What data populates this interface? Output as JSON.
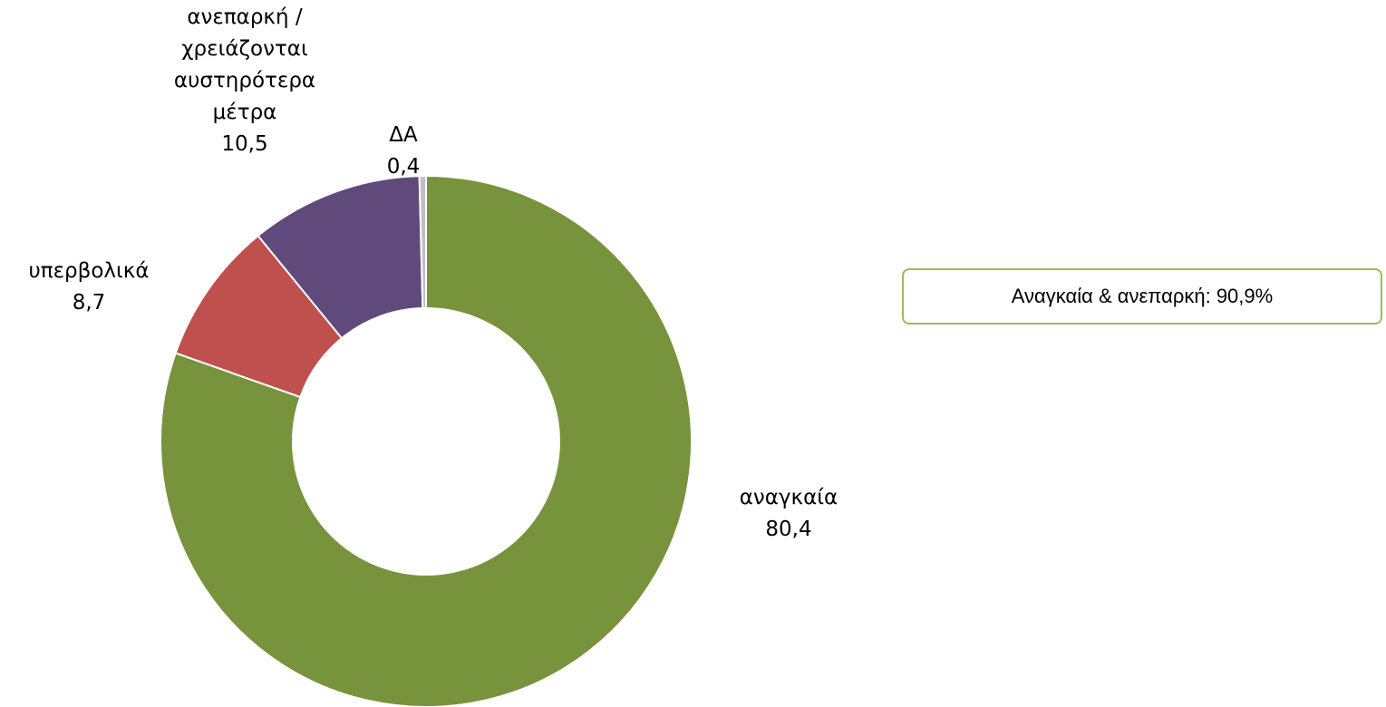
{
  "chart_data": {
    "type": "donut",
    "categories": [
      "αναγκαία",
      "υπερβολικά",
      "ανεπαρκή / χρειάζονται αυστηρότερα μέτρα",
      "ΔΑ"
    ],
    "values": [
      80.4,
      8.7,
      10.5,
      0.4
    ],
    "value_labels": [
      "80,4",
      "8,7",
      "10,5",
      "0,4"
    ],
    "colors": [
      "#77933c",
      "#c0504d",
      "#604a7b",
      "#bfbfbf"
    ],
    "annotation": "Αναγκαία & ανεπαρκή: 90,9%"
  }
}
